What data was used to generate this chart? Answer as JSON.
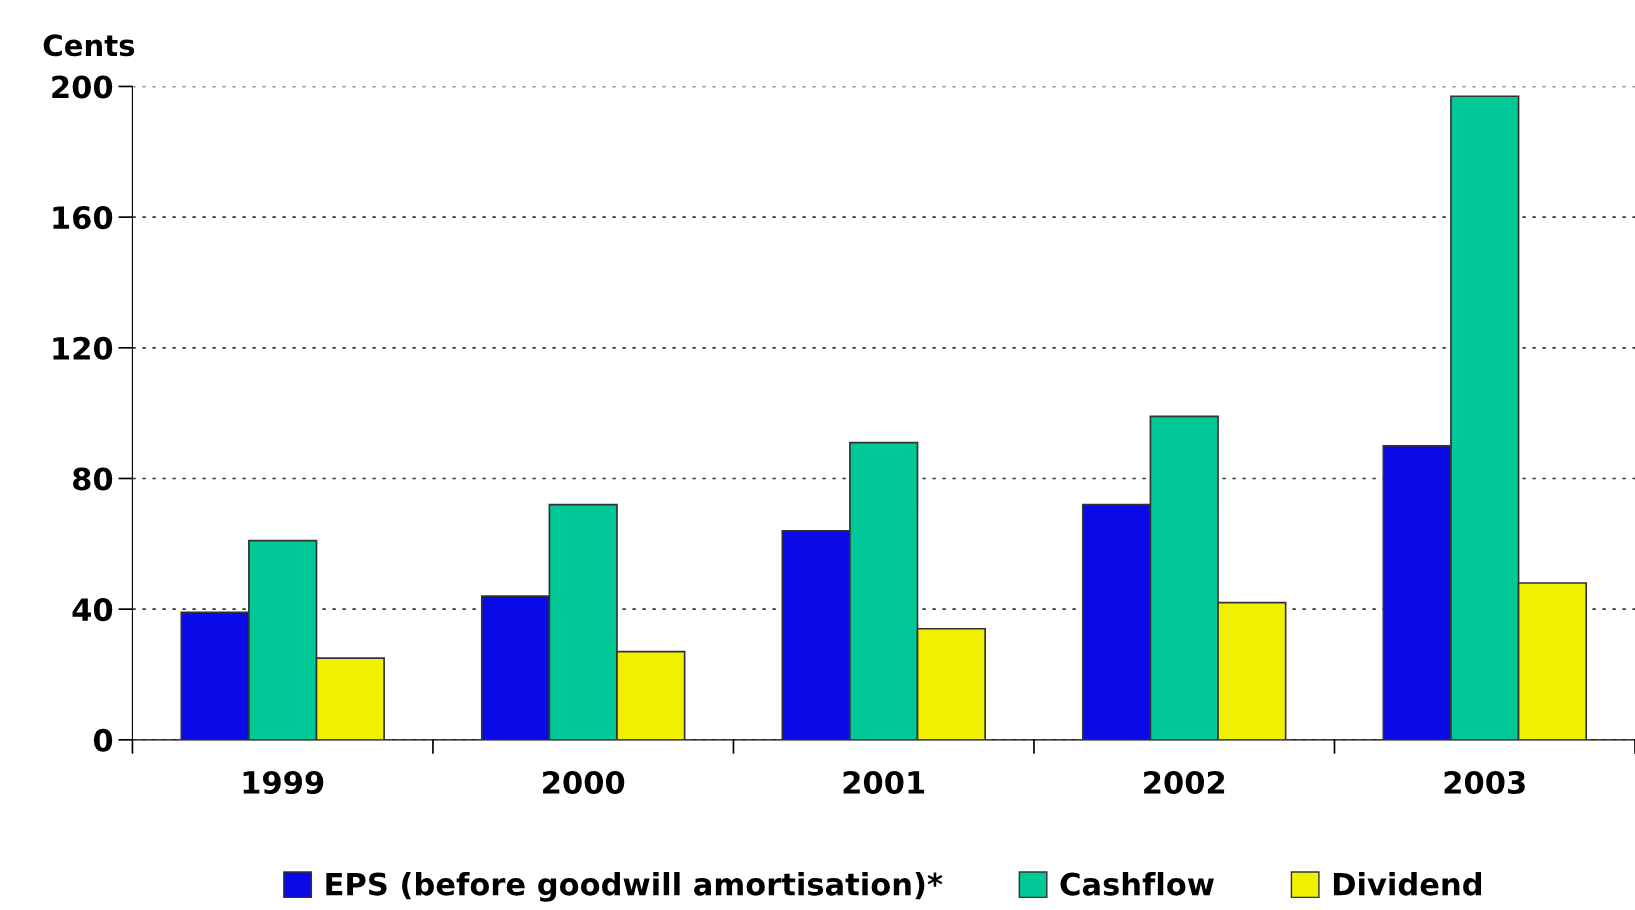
{
  "chart_data": {
    "type": "bar",
    "ylabel": "Cents",
    "categories": [
      "1999",
      "2000",
      "2001",
      "2002",
      "2003"
    ],
    "series": [
      {
        "name": "EPS (before goodwill amortisation)*",
        "color": "#0a0ae6",
        "values": [
          39,
          44,
          64,
          72,
          90
        ]
      },
      {
        "name": "Cashflow",
        "color": "#00c896",
        "values": [
          61,
          72,
          91,
          99,
          197
        ]
      },
      {
        "name": "Dividend",
        "color": "#f0f000",
        "values": [
          25,
          27,
          34,
          42,
          48
        ]
      }
    ],
    "ylim": [
      0,
      200
    ],
    "yticks": [
      0,
      40,
      80,
      120,
      160,
      200
    ],
    "grid": "y",
    "legend": "bottom"
  }
}
